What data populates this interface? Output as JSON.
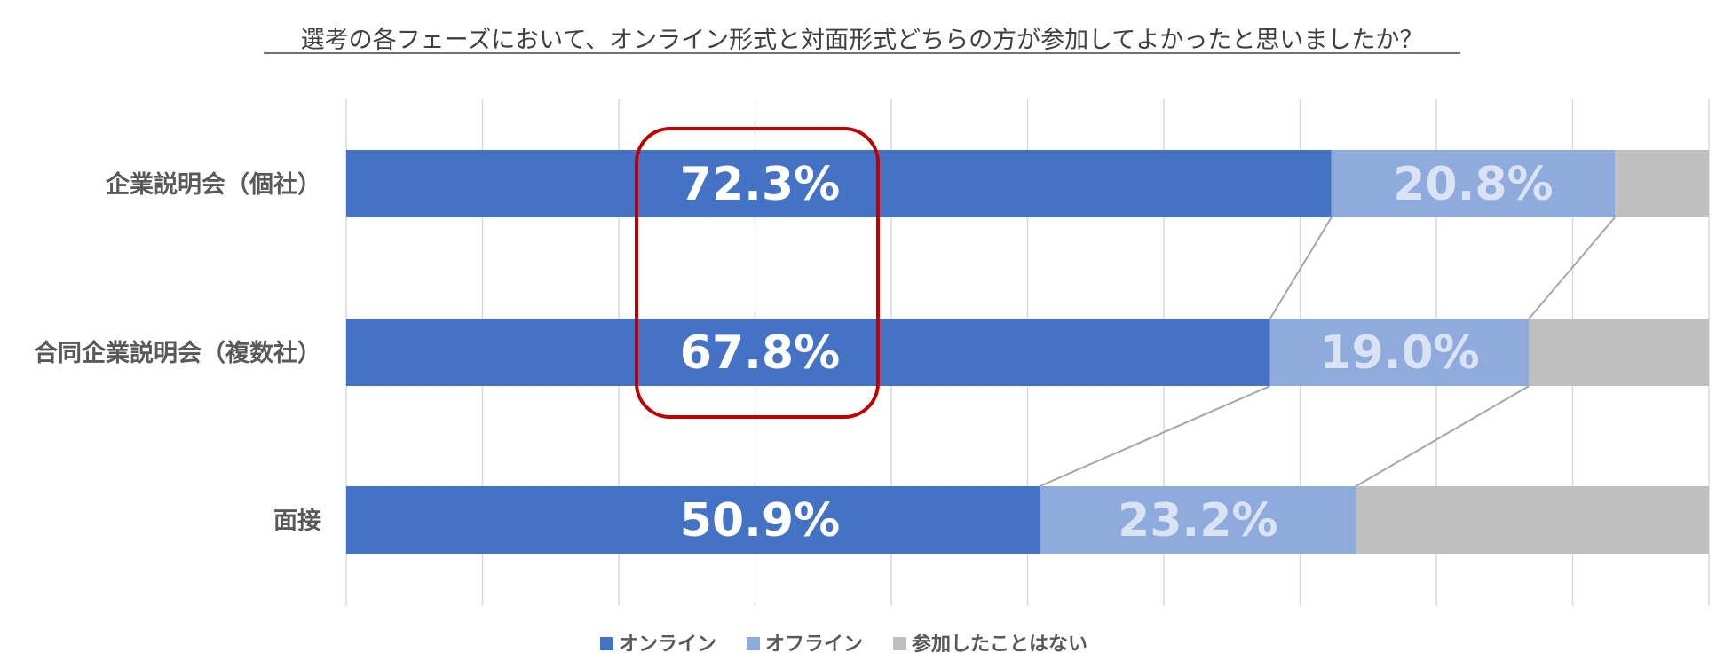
{
  "chart_data": {
    "type": "bar",
    "orientation": "horizontal",
    "stacked": "percent",
    "title": "選考の各フェーズにおいて、オンライン形式と対面形式どちらの方が参加してよかったと思いましたか？",
    "categories": [
      "企業説明会（個社）",
      "合同企業説明会（複数社）",
      "面接"
    ],
    "series": [
      {
        "name": "オンライン",
        "values": [
          72.3,
          67.8,
          50.9
        ],
        "color": "#4472C4",
        "label_color": "#FFFFFF"
      },
      {
        "name": "オフライン",
        "values": [
          20.8,
          19.0,
          23.2
        ],
        "color": "#8FAADC",
        "label_color": "#DAE3F3"
      },
      {
        "name": "参加したことはない",
        "values": [
          6.9,
          13.2,
          25.9
        ],
        "color": "#BFBFBF"
      }
    ],
    "data_labels": {
      "オンライン": [
        "72.3%",
        "67.8%",
        "50.9%"
      ],
      "オフライン": [
        "20.8%",
        "19.0%",
        "23.2%"
      ]
    },
    "xlim": [
      0,
      100
    ],
    "grid": true,
    "legend": "bottom",
    "highlight": {
      "series": "オンライン",
      "categories": [
        "企業説明会（個社）",
        "合同企業説明会（複数社）"
      ],
      "color": "#C00000"
    },
    "series_lines": true
  }
}
